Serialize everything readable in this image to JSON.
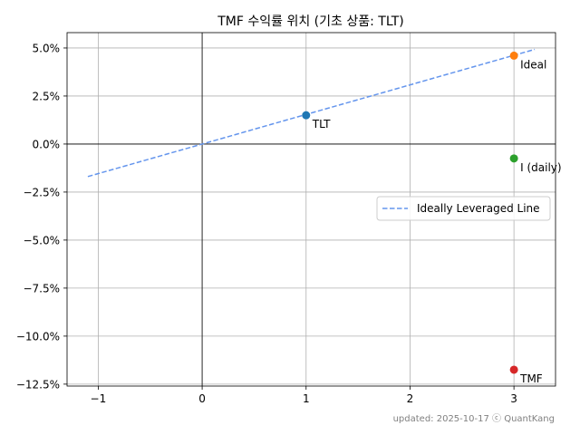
{
  "chart_data": {
    "type": "scatter",
    "title": "TMF 수익률 위치 (기초 상품: TLT)",
    "xlabel": "",
    "ylabel": "",
    "xlim": [
      -1.3,
      3.4
    ],
    "ylim": [
      -12.6,
      5.8
    ],
    "x_ticks": [
      -1,
      0,
      1,
      2,
      3
    ],
    "x_tick_labels": [
      "−1",
      "0",
      "1",
      "2",
      "3"
    ],
    "y_ticks": [
      5.0,
      2.5,
      0.0,
      -2.5,
      -5.0,
      -7.5,
      -10.0,
      -12.5
    ],
    "y_tick_labels": [
      "5.0%",
      "2.5%",
      "0.0%",
      "−2.5%",
      "−5.0%",
      "−7.5%",
      "−10.0%",
      "−12.5%"
    ],
    "grid": true,
    "zero_lines": true,
    "line": {
      "name": "Ideally Leveraged Line",
      "style": "dashed",
      "color": "#6495ED",
      "slope": 1.54,
      "x_range": [
        -1.1,
        3.2
      ]
    },
    "points": [
      {
        "name": "TLT",
        "x": 1,
        "y": 1.5,
        "color": "#1f77b4"
      },
      {
        "name": "Ideal",
        "x": 3,
        "y": 4.6,
        "color": "#ff7f0e"
      },
      {
        "name": "I (daily)",
        "x": 3,
        "y": -0.75,
        "color": "#2ca02c"
      },
      {
        "name": "TMF",
        "x": 3,
        "y": -11.75,
        "color": "#d62728"
      }
    ],
    "legend": {
      "position": "center-right",
      "entries": [
        "Ideally Leveraged Line"
      ]
    }
  },
  "footer": "updated: 2025-10-17 ⓒ QuantKang"
}
